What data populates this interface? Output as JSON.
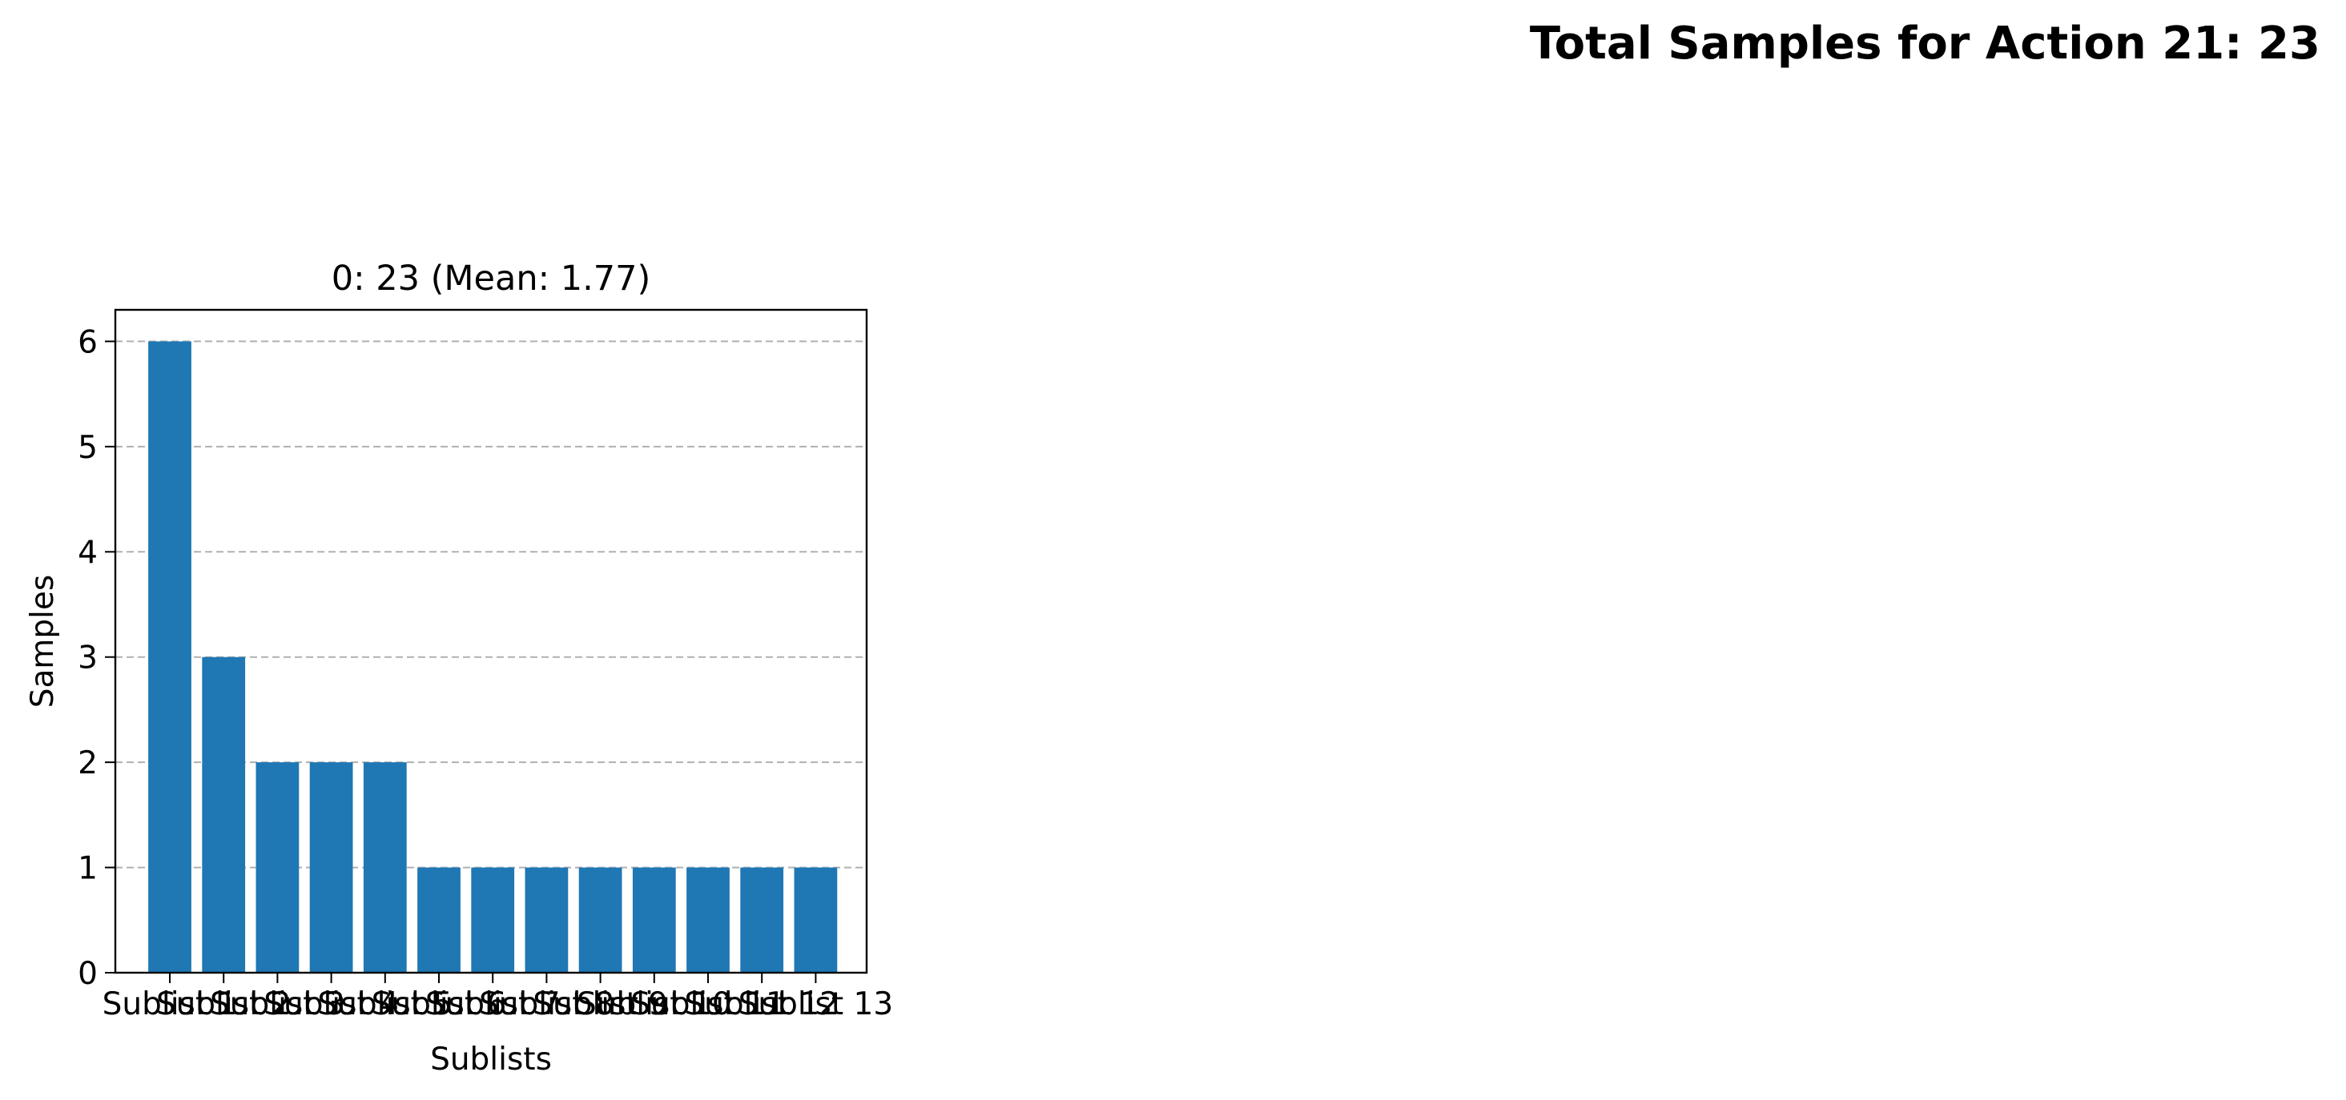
{
  "figure": {
    "suptitle": "Total Samples for Action 21: 23"
  },
  "chart_data": {
    "type": "bar",
    "title": "0: 23 (Mean: 1.77)",
    "xlabel": "Sublists",
    "ylabel": "Samples",
    "categories": [
      "Sublist 1",
      "Sublist 2",
      "Sublist 3",
      "Sublist 4",
      "Sublist 5",
      "Sublist 6",
      "Sublist 7",
      "Sublist 8",
      "Sublist 9",
      "Sublist 10",
      "Sublist 11",
      "Sublist 12",
      "Sublist 13"
    ],
    "values": [
      6,
      3,
      2,
      2,
      2,
      1,
      1,
      1,
      1,
      1,
      1,
      1,
      1
    ],
    "ylim": [
      0,
      6.3
    ],
    "yticks": [
      "0",
      "1",
      "2",
      "3",
      "4",
      "5",
      "6"
    ],
    "grid": "y-dashed",
    "bar_color": "#1f77b4",
    "grid_color": "#b0b0b0"
  }
}
